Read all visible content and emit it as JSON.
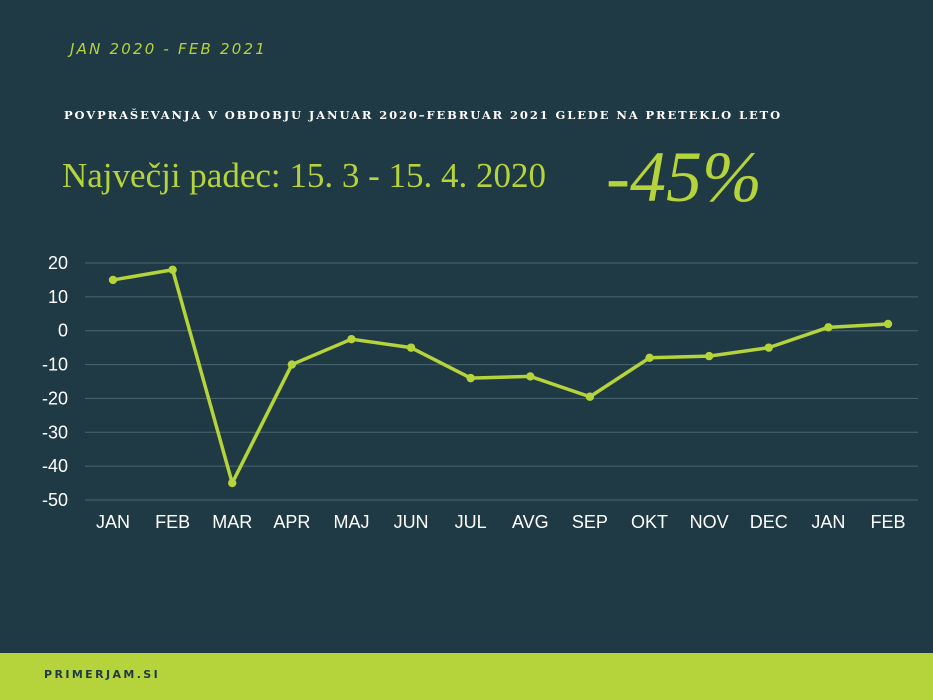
{
  "header": {
    "period": "JAN 2020 - FEB 2021",
    "subtitle": "POVPRAŠEVANJA V OBDOBJU JANUAR 2020–FEBRUAR 2021 GLEDE NA PRETEKLO LETO",
    "headline": "Največji padec: 15. 3 - 15. 4. 2020",
    "big_value": "-45%"
  },
  "footer": {
    "brand": "PRIMERJAM.SI"
  },
  "colors": {
    "background": "#1f3a44",
    "accent": "#b5d33a",
    "grid": "#4a6670",
    "text": "#ffffff"
  },
  "chart_data": {
    "type": "line",
    "categories": [
      "JAN",
      "FEB",
      "MAR",
      "APR",
      "MAJ",
      "JUN",
      "JUL",
      "AVG",
      "SEP",
      "OKT",
      "NOV",
      "DEC",
      "JAN",
      "FEB"
    ],
    "values": [
      15,
      18,
      -45,
      -10,
      -2.5,
      -5,
      -14,
      -13.5,
      -19.5,
      -8,
      -7.5,
      -5,
      1,
      2
    ],
    "yticks": [
      20,
      10,
      0,
      -10,
      -20,
      -30,
      -40,
      -50
    ],
    "ylim": [
      -50,
      20
    ],
    "grid": true,
    "legend": "none"
  }
}
